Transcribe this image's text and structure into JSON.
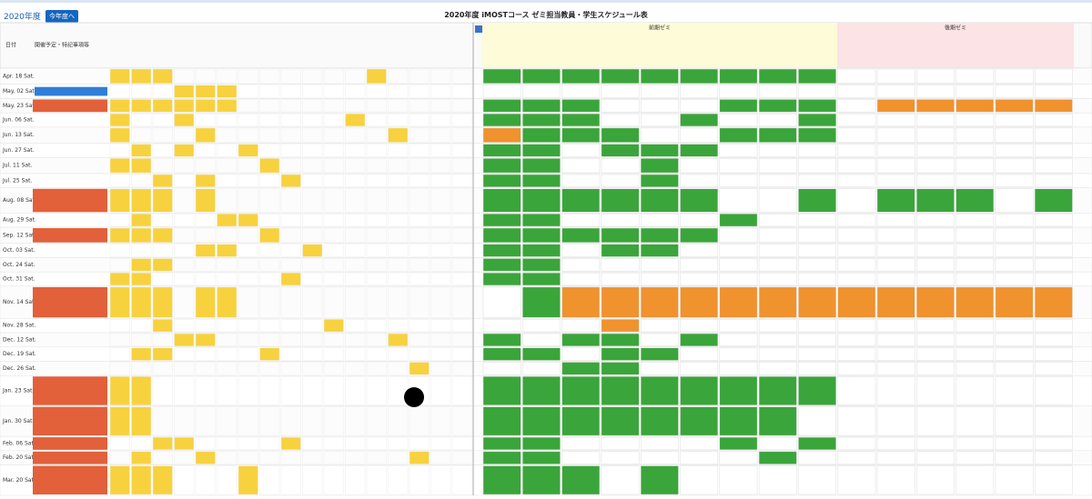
{
  "header": {
    "year_select": "2020年度",
    "button": "今年度へ",
    "title": "2020年度 iMOSTコース ゼミ担当教員・学生スケジュール表"
  },
  "table": {
    "columns": {
      "date": "日付",
      "notes": "開催予定・特記事項等"
    },
    "groups": [
      "前期ゼミ",
      "後期ゼミ"
    ],
    "rows": [
      "Apr. 18 Sat.",
      "May. 02 Sat.",
      "May. 23 Sat.",
      "Jun. 06 Sat.",
      "Jun. 13 Sat.",
      "Jun. 27 Sat.",
      "Jul. 11 Sat.",
      "Jul. 25 Sat.",
      "Aug. 08 Sat.",
      "Aug. 29 Sat.",
      "Sep. 12 Sat.",
      "Oct. 03 Sat.",
      "Oct. 24 Sat.",
      "Oct. 31 Sat.",
      "Nov. 14 Sat.",
      "Nov. 28 Sat.",
      "Dec. 12 Sat.",
      "Dec. 19 Sat.",
      "Dec. 26 Sat.",
      "Jan. 23 Sat.",
      "Jan. 30 Sat.",
      "Feb. 06 Sat.",
      "Feb. 20 Sat.",
      "Mar. 20 Sat."
    ]
  }
}
